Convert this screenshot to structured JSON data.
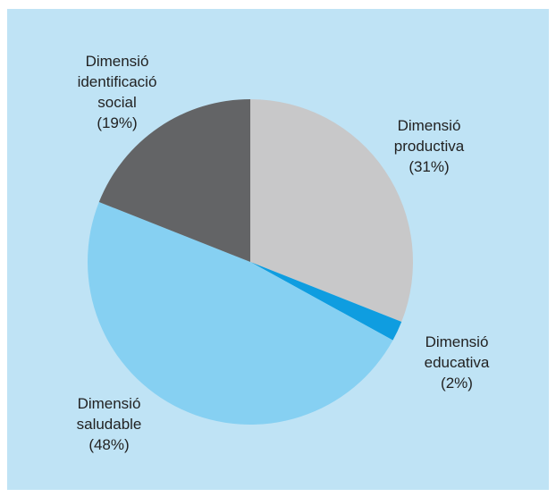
{
  "chart_data": {
    "type": "pie",
    "title": "",
    "start_angle_deg": 0,
    "direction": "clockwise",
    "slices": [
      {
        "label_lines": [
          "Dimensió",
          "productiva",
          "(31%)"
        ],
        "value": 31,
        "color": "#c8c8c9"
      },
      {
        "label_lines": [
          "Dimensió",
          "educativa",
          "(2%)"
        ],
        "value": 2,
        "color": "#0f9de0"
      },
      {
        "label_lines": [
          "Dimensió",
          "saludable",
          "(48%)"
        ],
        "value": 48,
        "color": "#86d0f2"
      },
      {
        "label_lines": [
          "Dimensió",
          "identificació",
          "social",
          "(19%)"
        ],
        "value": 19,
        "color": "#636466"
      }
    ]
  }
}
